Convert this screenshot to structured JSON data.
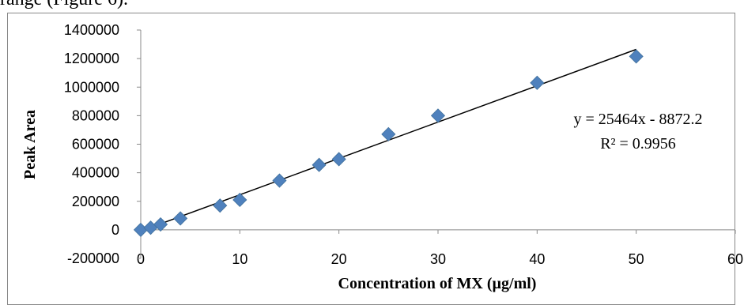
{
  "page": {
    "text_fragment": "range (Figure 6)."
  },
  "chart_data": {
    "type": "scatter",
    "title": "",
    "xlabel": "Concentration of MX (µg/ml)",
    "ylabel": "Peak Area",
    "xlim": [
      0,
      60
    ],
    "ylim": [
      -200000,
      1400000
    ],
    "x_ticks": [
      0,
      10,
      20,
      30,
      40,
      50,
      60
    ],
    "y_ticks": [
      -200000,
      0,
      200000,
      400000,
      600000,
      800000,
      1000000,
      1200000,
      1400000
    ],
    "grid": false,
    "legend": "none",
    "marker": "diamond",
    "marker_color": "#4F81BD",
    "line_color": "#000000",
    "points": [
      {
        "x": 0,
        "y": 0
      },
      {
        "x": 1,
        "y": 15000
      },
      {
        "x": 2,
        "y": 38000
      },
      {
        "x": 4,
        "y": 80000
      },
      {
        "x": 8,
        "y": 170000
      },
      {
        "x": 10,
        "y": 210000
      },
      {
        "x": 14,
        "y": 345000
      },
      {
        "x": 18,
        "y": 455000
      },
      {
        "x": 20,
        "y": 495000
      },
      {
        "x": 25,
        "y": 670000
      },
      {
        "x": 30,
        "y": 800000
      },
      {
        "x": 40,
        "y": 1030000
      },
      {
        "x": 50,
        "y": 1215000
      }
    ],
    "trendline": {
      "slope": 25464,
      "intercept": -8872.2,
      "x_range": [
        0,
        50
      ]
    },
    "annotations": {
      "equation": "y = 25464x - 8872.2",
      "r_squared": "R² = 0.9956"
    }
  }
}
